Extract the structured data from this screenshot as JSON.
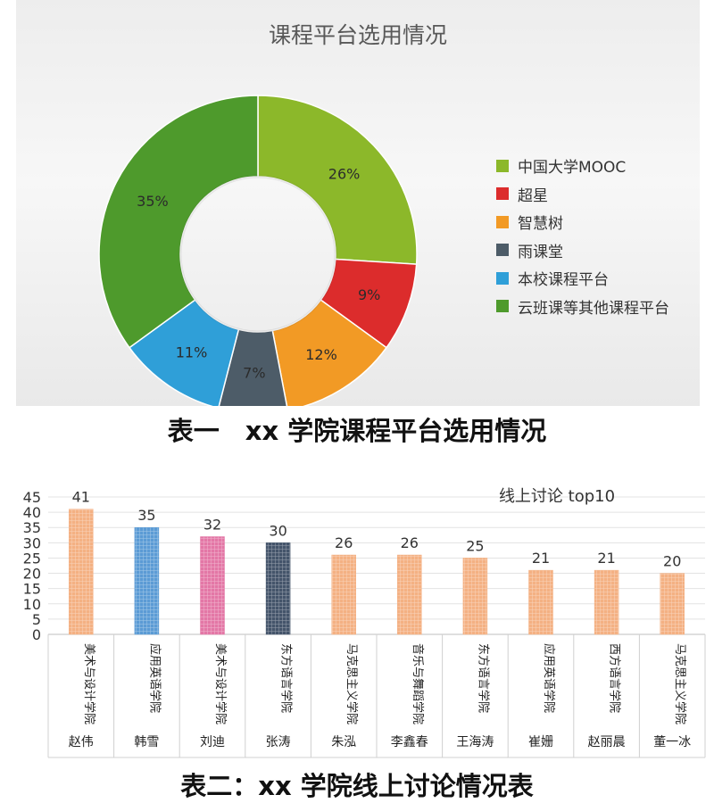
{
  "chart_data": [
    {
      "type": "pie",
      "title": "课程平台选用情况",
      "categories": [
        "中国大学MOOC",
        "超星",
        "智慧树",
        "雨课堂",
        "本校课程平台",
        "云班课等其他课程平台"
      ],
      "values": [
        26,
        9,
        12,
        7,
        11,
        35
      ],
      "value_labels": [
        "26%",
        "9%",
        "12%",
        "7%",
        "11%",
        "35%"
      ],
      "colors": [
        "#8cb82a",
        "#dc2c2c",
        "#f29a25",
        "#4d5c68",
        "#2f9fd8",
        "#4e9a2c"
      ],
      "legend": "right",
      "donut": true
    },
    {
      "type": "bar",
      "title": "线上讨论 top10",
      "categories": [
        "赵伟",
        "韩雪",
        "刘迪",
        "张涛",
        "朱泓",
        "李鑫春",
        "王海涛",
        "崔姗",
        "赵丽晨",
        "董一冰"
      ],
      "departments": [
        "美术与设计学院",
        "应用英语学院",
        "美术与设计学院",
        "东方语言学院",
        "马克思主义学院",
        "音乐与舞蹈学院",
        "东方语言学院",
        "应用英语学院",
        "西方语言学院",
        "马克思主义学院"
      ],
      "values": [
        41,
        35,
        32,
        30,
        26,
        26,
        25,
        21,
        21,
        20
      ],
      "colors": [
        "#f4b183",
        "#5b9bd5",
        "#e377a6",
        "#44546a",
        "#f4b183",
        "#f4b183",
        "#f4b183",
        "#f4b183",
        "#f4b183",
        "#f4b183"
      ],
      "yticks": [
        0,
        5,
        10,
        15,
        20,
        25,
        30,
        35,
        40,
        45
      ],
      "ylim": [
        0,
        45
      ],
      "grid": true
    }
  ],
  "captions": {
    "caption1": "表一　xx 学院课程平台选用情况",
    "caption2": "表二：xx 学院线上讨论情况表"
  }
}
